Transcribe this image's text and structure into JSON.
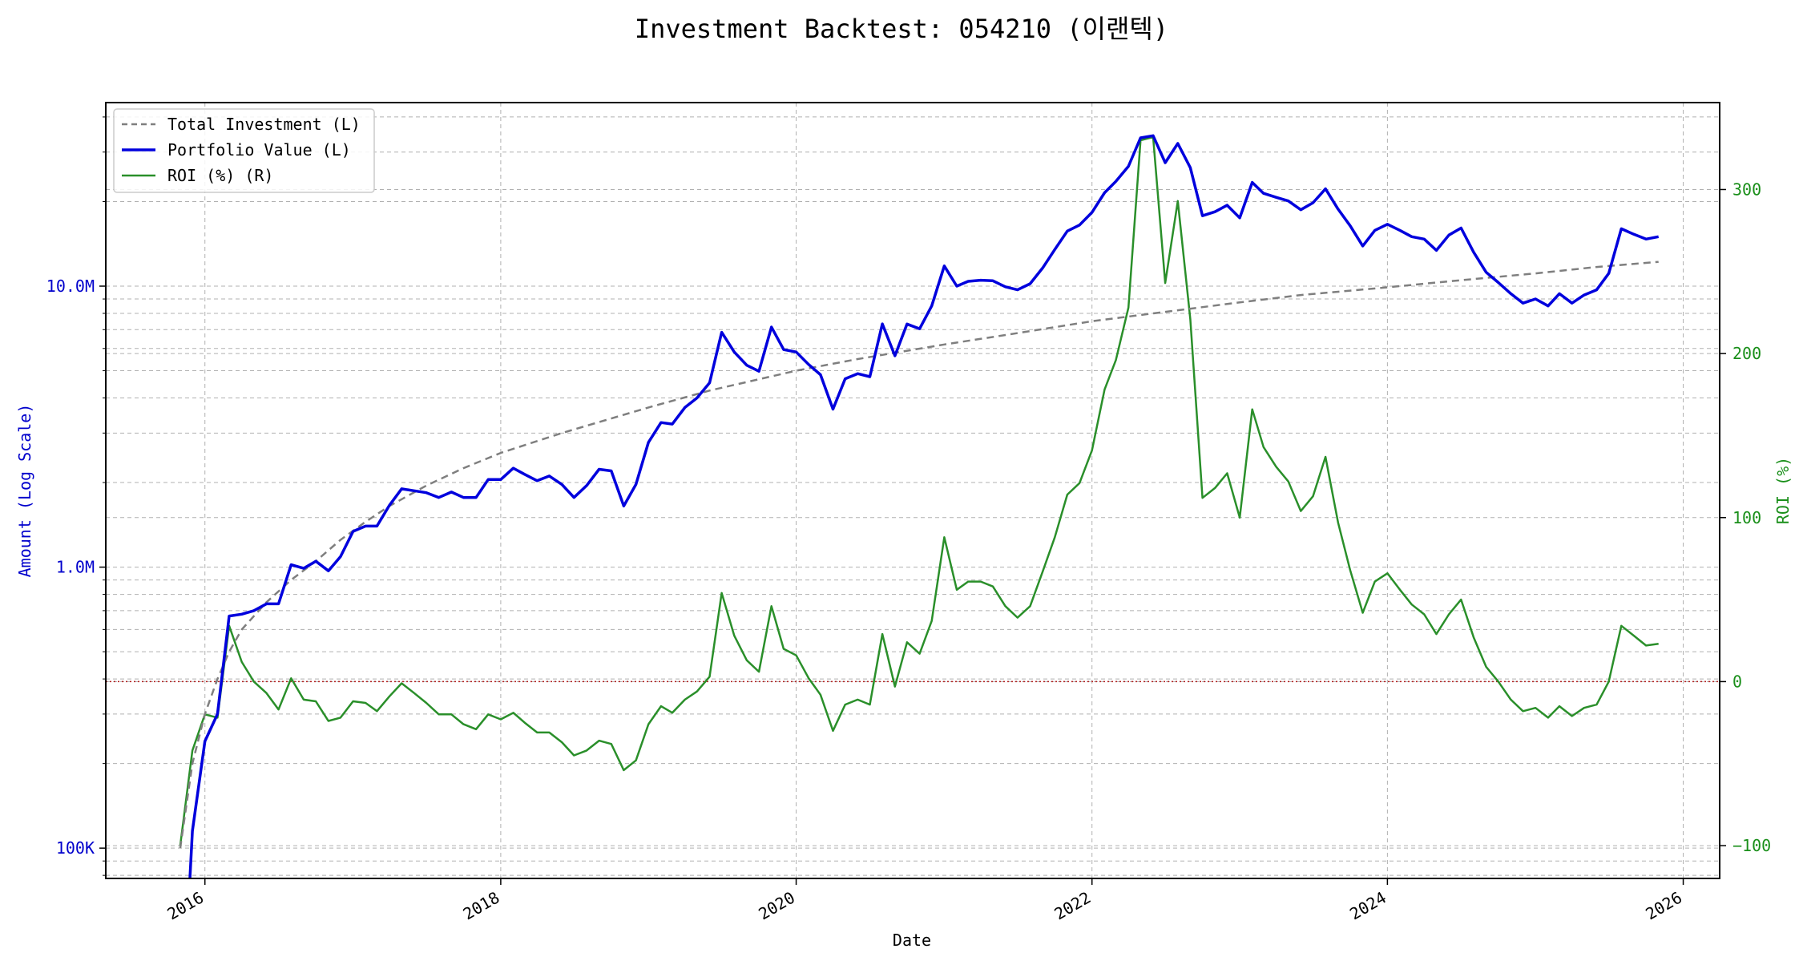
{
  "chart_data": {
    "type": "line",
    "title": "Investment Backtest: 054210 (이랜텍)",
    "xlabel": "Date",
    "ylabel_left": "Amount (Log Scale)",
    "ylabel_right": "ROI (%)",
    "x_ticks": [
      "2016",
      "2018",
      "2020",
      "2022",
      "2024",
      "2026"
    ],
    "y_left_ticks": [
      {
        "value": 100000,
        "label": "100K"
      },
      {
        "value": 1000000,
        "label": "1.0M"
      },
      {
        "value": 10000000,
        "label": "10.0M"
      }
    ],
    "y_right_ticks": [
      {
        "value": -100,
        "label": "−100"
      },
      {
        "value": 0,
        "label": "0"
      },
      {
        "value": 100,
        "label": "100"
      },
      {
        "value": 200,
        "label": "200"
      },
      {
        "value": 300,
        "label": "300"
      }
    ],
    "x_range": [
      "2015-05-01",
      "2026-04-01"
    ],
    "y_left_range": [
      78000,
      45000000
    ],
    "y_left_scale": "log",
    "y_right_range": [
      -120,
      353
    ],
    "grid": true,
    "legend_position": "upper-left",
    "reference_line": {
      "axis": "right",
      "value": 0,
      "color": "#b22222",
      "style": "dotted"
    },
    "colors": {
      "total_investment": "#7f7f7f",
      "portfolio_value": "#0000dd",
      "roi": "#2a8f2a",
      "left_axis": "#0000cc",
      "right_axis": "#1a8f1a"
    },
    "series": [
      {
        "name": "Total Investment (L)",
        "axis": "left",
        "style": "dashed",
        "x": [
          "2015-11-01",
          "2015-12-01",
          "2016-01-01",
          "2016-02-01",
          "2016-03-01",
          "2016-04-01",
          "2016-06-01",
          "2016-08-01",
          "2016-10-01",
          "2016-12-01",
          "2017-02-01",
          "2017-04-01",
          "2017-07-01",
          "2017-10-01",
          "2018-01-01",
          "2018-06-01",
          "2019-01-01",
          "2019-06-01",
          "2020-01-01",
          "2020-06-01",
          "2021-01-01",
          "2021-06-01",
          "2022-01-01",
          "2022-06-01",
          "2023-01-01",
          "2023-06-01",
          "2024-01-01",
          "2024-06-01",
          "2025-01-01",
          "2025-06-01",
          "2025-11-01"
        ],
        "values": [
          100000,
          200000,
          300000,
          400000,
          500000,
          600000,
          750000,
          900000,
          1050000,
          1250000,
          1450000,
          1650000,
          1950000,
          2250000,
          2550000,
          3000000,
          3700000,
          4250000,
          5000000,
          5500000,
          6200000,
          6700000,
          7500000,
          8000000,
          8750000,
          9300000,
          9900000,
          10400000,
          11100000,
          11700000,
          12200000
        ]
      },
      {
        "name": "Portfolio Value (L)",
        "axis": "left",
        "style": "solid",
        "x": [
          "2015-11-25",
          "2015-12-01",
          "2016-01-01",
          "2016-02-01",
          "2016-03-01",
          "2016-04-01",
          "2016-05-01",
          "2016-06-01",
          "2016-07-01",
          "2016-08-01",
          "2016-09-01",
          "2016-10-01",
          "2016-11-01",
          "2016-12-01",
          "2017-01-01",
          "2017-02-01",
          "2017-03-01",
          "2017-04-01",
          "2017-05-01",
          "2017-06-01",
          "2017-07-01",
          "2017-08-01",
          "2017-09-01",
          "2017-10-01",
          "2017-11-01",
          "2017-12-01",
          "2018-01-01",
          "2018-02-01",
          "2018-03-01",
          "2018-04-01",
          "2018-05-01",
          "2018-06-01",
          "2018-07-01",
          "2018-08-01",
          "2018-09-01",
          "2018-10-01",
          "2018-11-01",
          "2018-12-01",
          "2019-01-01",
          "2019-02-01",
          "2019-03-01",
          "2019-04-01",
          "2019-05-01",
          "2019-06-01",
          "2019-07-01",
          "2019-08-01",
          "2019-09-01",
          "2019-10-01",
          "2019-11-01",
          "2019-12-01",
          "2020-01-01",
          "2020-02-01",
          "2020-03-01",
          "2020-04-01",
          "2020-05-01",
          "2020-06-01",
          "2020-07-01",
          "2020-08-01",
          "2020-09-01",
          "2020-10-01",
          "2020-11-01",
          "2020-12-01",
          "2021-01-01",
          "2021-02-01",
          "2021-03-01",
          "2021-04-01",
          "2021-05-01",
          "2021-06-01",
          "2021-07-01",
          "2021-08-01",
          "2021-09-01",
          "2021-10-01",
          "2021-11-01",
          "2021-12-01",
          "2022-01-01",
          "2022-02-01",
          "2022-03-01",
          "2022-04-01",
          "2022-05-01",
          "2022-06-01",
          "2022-07-01",
          "2022-08-01",
          "2022-09-01",
          "2022-10-01",
          "2022-11-01",
          "2022-12-01",
          "2023-01-01",
          "2023-02-01",
          "2023-03-01",
          "2023-04-01",
          "2023-05-01",
          "2023-06-01",
          "2023-07-01",
          "2023-08-01",
          "2023-09-01",
          "2023-10-01",
          "2023-11-01",
          "2023-12-01",
          "2024-01-01",
          "2024-02-01",
          "2024-03-01",
          "2024-04-01",
          "2024-05-01",
          "2024-06-01",
          "2024-07-01",
          "2024-08-01",
          "2024-09-01",
          "2024-10-01",
          "2024-11-01",
          "2024-12-01",
          "2025-01-01",
          "2025-02-01",
          "2025-03-01",
          "2025-04-01",
          "2025-05-01",
          "2025-06-01",
          "2025-07-01",
          "2025-08-01",
          "2025-09-01",
          "2025-10-01",
          "2025-11-01"
        ],
        "values": [
          78000,
          115000,
          240000,
          300000,
          670000,
          680000,
          700000,
          740000,
          740000,
          1020000,
          990000,
          1050000,
          970000,
          1090000,
          1340000,
          1400000,
          1400000,
          1660000,
          1900000,
          1870000,
          1840000,
          1770000,
          1850000,
          1770000,
          1770000,
          2050000,
          2050000,
          2250000,
          2140000,
          2030000,
          2110000,
          1970000,
          1770000,
          1950000,
          2230000,
          2200000,
          1650000,
          1970000,
          2780000,
          3270000,
          3230000,
          3700000,
          4000000,
          4530000,
          6850000,
          5830000,
          5230000,
          4980000,
          7150000,
          5950000,
          5830000,
          5260000,
          4840000,
          3650000,
          4680000,
          4880000,
          4760000,
          7340000,
          5650000,
          7330000,
          7050000,
          8500000,
          11800000,
          10000000,
          10400000,
          10500000,
          10450000,
          9950000,
          9700000,
          10200000,
          11600000,
          13500000,
          15700000,
          16500000,
          18300000,
          21500000,
          23600000,
          26700000,
          33700000,
          34300000,
          27500000,
          32200000,
          26400000,
          17800000,
          18400000,
          19400000,
          17500000,
          23400000,
          21400000,
          20700000,
          20100000,
          18700000,
          19800000,
          22200000,
          18800000,
          16400000,
          13900000,
          15800000,
          16600000,
          15800000,
          15000000,
          14700000,
          13400000,
          15200000,
          16100000,
          13200000,
          11200000,
          10300000,
          9400000,
          8700000,
          9000000,
          8500000,
          9400000,
          8700000,
          9300000,
          9700000,
          11100000,
          16000000,
          15300000,
          14700000,
          15000000
        ]
      },
      {
        "name": "ROI (%) (R)",
        "axis": "right",
        "style": "solid",
        "x": [
          "2015-11-01",
          "2015-12-01",
          "2016-01-01",
          "2016-02-01",
          "2016-03-01",
          "2016-04-01",
          "2016-05-01",
          "2016-06-01",
          "2016-07-01",
          "2016-08-01",
          "2016-09-01",
          "2016-10-01",
          "2016-11-01",
          "2016-12-01",
          "2017-01-01",
          "2017-02-01",
          "2017-03-01",
          "2017-04-01",
          "2017-05-01",
          "2017-06-01",
          "2017-07-01",
          "2017-08-01",
          "2017-09-01",
          "2017-10-01",
          "2017-11-01",
          "2017-12-01",
          "2018-01-01",
          "2018-02-01",
          "2018-03-01",
          "2018-04-01",
          "2018-05-01",
          "2018-06-01",
          "2018-07-01",
          "2018-08-01",
          "2018-09-01",
          "2018-10-01",
          "2018-11-01",
          "2018-12-01",
          "2019-01-01",
          "2019-02-01",
          "2019-03-01",
          "2019-04-01",
          "2019-05-01",
          "2019-06-01",
          "2019-07-01",
          "2019-08-01",
          "2019-09-01",
          "2019-10-01",
          "2019-11-01",
          "2019-12-01",
          "2020-01-01",
          "2020-02-01",
          "2020-03-01",
          "2020-04-01",
          "2020-05-01",
          "2020-06-01",
          "2020-07-01",
          "2020-08-01",
          "2020-09-01",
          "2020-10-01",
          "2020-11-01",
          "2020-12-01",
          "2021-01-01",
          "2021-02-01",
          "2021-03-01",
          "2021-04-01",
          "2021-05-01",
          "2021-06-01",
          "2021-07-01",
          "2021-08-01",
          "2021-09-01",
          "2021-10-01",
          "2021-11-01",
          "2021-12-01",
          "2022-01-01",
          "2022-02-01",
          "2022-03-01",
          "2022-04-01",
          "2022-05-01",
          "2022-06-01",
          "2022-07-01",
          "2022-08-01",
          "2022-09-01",
          "2022-10-01",
          "2022-11-01",
          "2022-12-01",
          "2023-01-01",
          "2023-02-01",
          "2023-03-01",
          "2023-04-01",
          "2023-05-01",
          "2023-06-01",
          "2023-07-01",
          "2023-08-01",
          "2023-09-01",
          "2023-10-01",
          "2023-11-01",
          "2023-12-01",
          "2024-01-01",
          "2024-02-01",
          "2024-03-01",
          "2024-04-01",
          "2024-05-01",
          "2024-06-01",
          "2024-07-01",
          "2024-08-01",
          "2024-09-01",
          "2024-10-01",
          "2024-11-01",
          "2024-12-01",
          "2025-01-01",
          "2025-02-01",
          "2025-03-01",
          "2025-04-01",
          "2025-05-01",
          "2025-06-01",
          "2025-07-01",
          "2025-08-01",
          "2025-09-01",
          "2025-10-01",
          "2025-11-01"
        ],
        "values": [
          -100,
          -42,
          -20,
          -22,
          34,
          12,
          0,
          -7,
          -17,
          2,
          -11,
          -12,
          -24,
          -22,
          -12,
          -13,
          -18,
          -9,
          -1,
          -7,
          -13,
          -20,
          -20,
          -26,
          -29,
          -20,
          -23,
          -19,
          -25,
          -31,
          -31,
          -37,
          -45,
          -42,
          -36,
          -38,
          -54,
          -48,
          -26,
          -15,
          -19,
          -11,
          -6,
          3,
          54,
          28,
          13,
          6,
          46,
          20,
          16,
          2,
          -8,
          -30,
          -14,
          -11,
          -14,
          29,
          -3,
          24,
          17,
          37,
          88,
          56,
          61,
          61,
          58,
          46,
          39,
          46,
          67,
          88,
          114,
          121,
          141,
          178,
          196,
          228,
          330,
          332,
          243,
          293,
          221,
          112,
          118,
          127,
          100,
          166,
          143,
          131,
          122,
          104,
          113,
          137,
          97,
          68,
          42,
          61,
          66,
          56,
          47,
          41,
          29,
          41,
          50,
          27,
          9,
          0,
          -11,
          -18,
          -16,
          -22,
          -15,
          -21,
          -16,
          -14,
          0,
          34,
          28,
          22,
          23
        ]
      }
    ]
  }
}
